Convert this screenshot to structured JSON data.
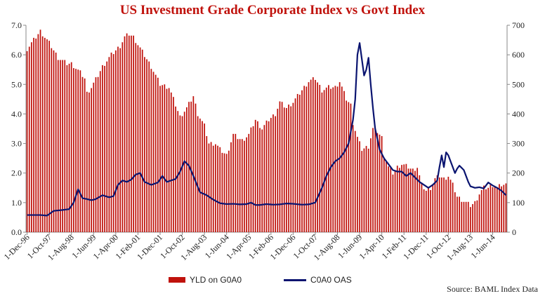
{
  "chart_data": {
    "type": "bar+line",
    "title": "US Investment Grade Corporate Index vs Govt Index",
    "source": "Source: BAML Index Data",
    "left_axis": {
      "ticks": [
        "0.0",
        "1.0",
        "2.0",
        "3.0",
        "4.0",
        "5.0",
        "6.0",
        "7.0"
      ],
      "ylim": [
        0,
        7
      ]
    },
    "right_axis": {
      "ticks": [
        "0",
        "100",
        "200",
        "300",
        "400",
        "500",
        "600",
        "700"
      ],
      "ylim": [
        0,
        700
      ]
    },
    "x_tick_labels": [
      "1-Dec-96",
      "1-Oct-97",
      "1-Aug-98",
      "1-Jun-99",
      "1-Apr-00",
      "1-Feb-01",
      "1-Dec-01",
      "1-Oct-02",
      "1-Aug-03",
      "1-Jun-04",
      "1-Apr-05",
      "1-Feb-06",
      "1-Dec-06",
      "1-Oct-07",
      "1-Aug-08",
      "1-Jun-09",
      "1-Apr-10",
      "1-Feb-11",
      "1-Dec-11",
      "1-Oct-12",
      "1-Aug-13",
      "1-Jun-14"
    ],
    "months_count": 217,
    "bar_series": {
      "name": "YLD on G0A0",
      "color": "#c0120c",
      "axis": "left",
      "anchors": [
        [
          0,
          6.2
        ],
        [
          4,
          6.6
        ],
        [
          6,
          6.8
        ],
        [
          10,
          6.4
        ],
        [
          14,
          5.9
        ],
        [
          18,
          5.7
        ],
        [
          20,
          5.7
        ],
        [
          24,
          5.4
        ],
        [
          26,
          5.2
        ],
        [
          27,
          4.7
        ],
        [
          29,
          4.9
        ],
        [
          32,
          5.3
        ],
        [
          34,
          5.6
        ],
        [
          38,
          6.0
        ],
        [
          42,
          6.3
        ],
        [
          44,
          6.6
        ],
        [
          46,
          6.7
        ],
        [
          48,
          6.6
        ],
        [
          52,
          6.1
        ],
        [
          56,
          5.6
        ],
        [
          60,
          5.0
        ],
        [
          64,
          4.9
        ],
        [
          66,
          4.5
        ],
        [
          69,
          3.9
        ],
        [
          72,
          4.2
        ],
        [
          75,
          4.6
        ],
        [
          77,
          4.0
        ],
        [
          80,
          3.6
        ],
        [
          82,
          3.0
        ],
        [
          85,
          3.0
        ],
        [
          87,
          2.8
        ],
        [
          90,
          2.6
        ],
        [
          93,
          3.3
        ],
        [
          97,
          3.1
        ],
        [
          100,
          3.3
        ],
        [
          103,
          3.8
        ],
        [
          106,
          3.5
        ],
        [
          109,
          3.8
        ],
        [
          112,
          4.0
        ],
        [
          114,
          4.4
        ],
        [
          117,
          4.2
        ],
        [
          120,
          4.4
        ],
        [
          123,
          4.7
        ],
        [
          127,
          5.1
        ],
        [
          130,
          5.2
        ],
        [
          133,
          4.8
        ],
        [
          136,
          4.9
        ],
        [
          139,
          4.9
        ],
        [
          141,
          5.1
        ],
        [
          144,
          4.5
        ],
        [
          146,
          4.3
        ],
        [
          147,
          3.7
        ],
        [
          149,
          3.2
        ],
        [
          151,
          2.8
        ],
        [
          154,
          2.9
        ],
        [
          156,
          3.5
        ],
        [
          158,
          3.4
        ],
        [
          160,
          3.2
        ],
        [
          161,
          2.6
        ],
        [
          163,
          2.2
        ],
        [
          165,
          2.0
        ],
        [
          167,
          2.2
        ],
        [
          169,
          2.3
        ],
        [
          172,
          2.2
        ],
        [
          174,
          2.1
        ],
        [
          176,
          2.2
        ],
        [
          178,
          1.6
        ],
        [
          180,
          1.4
        ],
        [
          182,
          1.5
        ],
        [
          184,
          1.8
        ],
        [
          186,
          1.9
        ],
        [
          188,
          1.8
        ],
        [
          190,
          1.9
        ],
        [
          192,
          1.6
        ],
        [
          194,
          1.2
        ],
        [
          196,
          1.1
        ],
        [
          198,
          1.0
        ],
        [
          200,
          0.9
        ],
        [
          202,
          1.0
        ],
        [
          204,
          1.3
        ],
        [
          206,
          1.5
        ],
        [
          208,
          1.5
        ],
        [
          210,
          1.6
        ],
        [
          212,
          1.5
        ],
        [
          214,
          1.6
        ],
        [
          216,
          1.6
        ]
      ]
    },
    "line_series": {
      "name": "C0A0 OAS",
      "color": "#0a1470",
      "axis": "right",
      "anchors": [
        [
          0,
          58
        ],
        [
          6,
          58
        ],
        [
          9,
          56
        ],
        [
          12,
          72
        ],
        [
          16,
          75
        ],
        [
          19,
          78
        ],
        [
          21,
          100
        ],
        [
          23,
          145
        ],
        [
          25,
          115
        ],
        [
          27,
          112
        ],
        [
          29,
          108
        ],
        [
          31,
          112
        ],
        [
          34,
          125
        ],
        [
          37,
          118
        ],
        [
          39,
          122
        ],
        [
          41,
          160
        ],
        [
          43,
          175
        ],
        [
          45,
          170
        ],
        [
          47,
          178
        ],
        [
          49,
          195
        ],
        [
          51,
          200
        ],
        [
          53,
          170
        ],
        [
          56,
          160
        ],
        [
          59,
          168
        ],
        [
          61,
          190
        ],
        [
          63,
          170
        ],
        [
          65,
          175
        ],
        [
          67,
          180
        ],
        [
          69,
          205
        ],
        [
          71,
          240
        ],
        [
          73,
          225
        ],
        [
          75,
          190
        ],
        [
          78,
          135
        ],
        [
          81,
          125
        ],
        [
          84,
          110
        ],
        [
          87,
          98
        ],
        [
          90,
          95
        ],
        [
          93,
          96
        ],
        [
          96,
          94
        ],
        [
          99,
          95
        ],
        [
          101,
          100
        ],
        [
          103,
          92
        ],
        [
          105,
          92
        ],
        [
          108,
          95
        ],
        [
          111,
          93
        ],
        [
          114,
          94
        ],
        [
          117,
          97
        ],
        [
          120,
          96
        ],
        [
          124,
          93
        ],
        [
          127,
          94
        ],
        [
          130,
          100
        ],
        [
          133,
          150
        ],
        [
          135,
          190
        ],
        [
          137,
          220
        ],
        [
          139,
          240
        ],
        [
          141,
          250
        ],
        [
          143,
          270
        ],
        [
          145,
          300
        ],
        [
          147,
          380
        ],
        [
          148,
          450
        ],
        [
          149,
          600
        ],
        [
          150,
          640
        ],
        [
          152,
          530
        ],
        [
          153,
          550
        ],
        [
          154,
          590
        ],
        [
          155,
          500
        ],
        [
          156,
          420
        ],
        [
          157,
          350
        ],
        [
          159,
          280
        ],
        [
          161,
          250
        ],
        [
          163,
          230
        ],
        [
          165,
          210
        ],
        [
          167,
          205
        ],
        [
          169,
          205
        ],
        [
          171,
          190
        ],
        [
          173,
          200
        ],
        [
          175,
          185
        ],
        [
          177,
          170
        ],
        [
          179,
          160
        ],
        [
          181,
          150
        ],
        [
          183,
          160
        ],
        [
          185,
          175
        ],
        [
          186,
          220
        ],
        [
          187,
          260
        ],
        [
          188,
          220
        ],
        [
          189,
          270
        ],
        [
          190,
          260
        ],
        [
          192,
          220
        ],
        [
          193,
          200
        ],
        [
          194,
          215
        ],
        [
          195,
          225
        ],
        [
          197,
          210
        ],
        [
          199,
          170
        ],
        [
          200,
          155
        ],
        [
          202,
          150
        ],
        [
          204,
          152
        ],
        [
          206,
          148
        ],
        [
          208,
          168
        ],
        [
          210,
          158
        ],
        [
          212,
          150
        ],
        [
          214,
          140
        ],
        [
          216,
          125
        ]
      ]
    }
  }
}
